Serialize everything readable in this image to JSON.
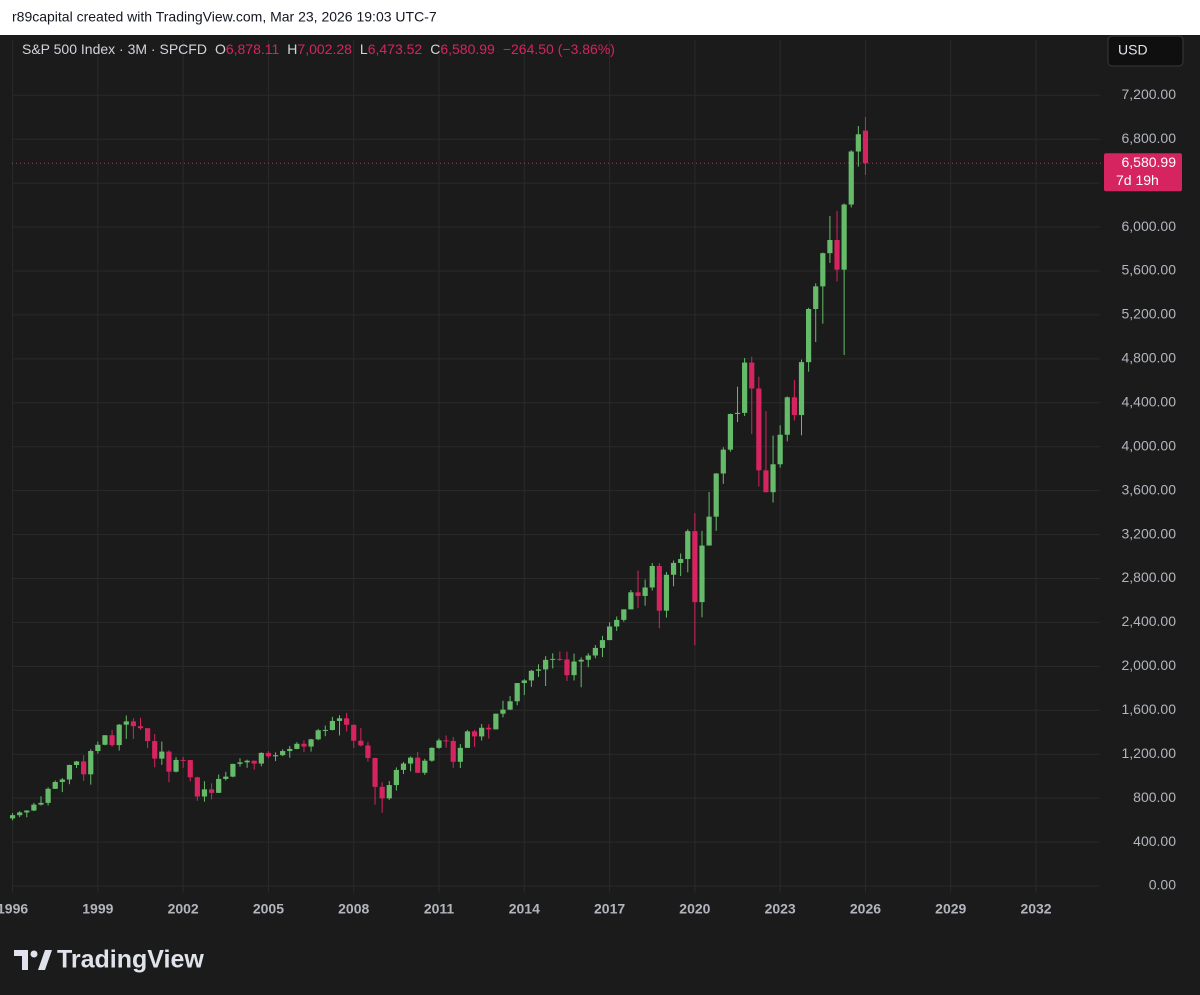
{
  "attribution": "r89capital created with TradingView.com, Mar 23, 2026 19:03 UTC-7",
  "brand": "TradingView",
  "chart_data": {
    "type": "candlestick",
    "title": "S&P 500 Index · 3M · SPCFD",
    "currency": "USD",
    "up_color": "#66bb6a",
    "down_color": "#d5245f",
    "grid": true,
    "ohlc_legend": [
      {
        "key": "O",
        "value": 6878.11,
        "label": "6,878.11"
      },
      {
        "key": "H",
        "value": 7002.28,
        "label": "7,002.28"
      },
      {
        "key": "L",
        "value": 6473.52,
        "label": "6,473.52"
      },
      {
        "key": "C",
        "value": 6580.99,
        "label": "6,580.99"
      }
    ],
    "change": {
      "value": -264.5,
      "label": "−264.50 (−3.86%)"
    },
    "last_price": {
      "value": 6580.99,
      "label": "6,580.99"
    },
    "countdown": "7d 19h",
    "xlim": [
      1995.98,
      2034.25
    ],
    "xticks": [
      {
        "value": 1996,
        "label": "1996"
      },
      1999,
      2002,
      2005,
      2008,
      2011,
      2014,
      2017,
      2020,
      2023,
      2026,
      2029,
      2032
    ],
    "ylim": [
      -60,
      7430
    ],
    "yticks": [
      {
        "value": 0,
        "label": "0.00"
      },
      {
        "value": 400,
        "label": "400.00"
      },
      {
        "value": 800,
        "label": "800.00"
      },
      {
        "value": 1200,
        "label": "1,200.00"
      },
      {
        "value": 1600,
        "label": "1,600.00"
      },
      {
        "value": 2000,
        "label": "2,000.00"
      },
      {
        "value": 2400,
        "label": "2,400.00"
      },
      {
        "value": 2800,
        "label": "2,800.00"
      },
      {
        "value": 3200,
        "label": "3,200.00"
      },
      {
        "value": 3600,
        "label": "3,600.00"
      },
      {
        "value": 4000,
        "label": "4,000.00"
      },
      {
        "value": 4400,
        "label": "4,400.00"
      },
      {
        "value": 4800,
        "label": "4,800.00"
      },
      {
        "value": 5200,
        "label": "5,200.00"
      },
      {
        "value": 5600,
        "label": "5,600.00"
      },
      {
        "value": 6000,
        "label": "6,000.00"
      },
      {
        "value": 6400,
        "label": "6,400.00"
      },
      {
        "value": 6800,
        "label": "6,800.00"
      },
      {
        "value": 7200,
        "label": "7,200.00"
      }
    ],
    "x": [
      1996,
      1996.25,
      1996.5,
      1996.75,
      1997,
      1997.25,
      1997.5,
      1997.75,
      1998,
      1998.25,
      1998.5,
      1998.75,
      1999,
      1999.25,
      1999.5,
      1999.75,
      2000,
      2000.25,
      2000.5,
      2000.75,
      2001,
      2001.25,
      2001.5,
      2001.75,
      2002,
      2002.25,
      2002.5,
      2002.75,
      2003,
      2003.25,
      2003.5,
      2003.75,
      2004,
      2004.25,
      2004.5,
      2004.75,
      2005,
      2005.25,
      2005.5,
      2005.75,
      2006,
      2006.25,
      2006.5,
      2006.75,
      2007,
      2007.25,
      2007.5,
      2007.75,
      2008,
      2008.25,
      2008.5,
      2008.75,
      2009,
      2009.25,
      2009.5,
      2009.75,
      2010,
      2010.25,
      2010.5,
      2010.75,
      2011,
      2011.25,
      2011.5,
      2011.75,
      2012,
      2012.25,
      2012.5,
      2012.75,
      2013,
      2013.25,
      2013.5,
      2013.75,
      2014,
      2014.25,
      2014.5,
      2014.75,
      2015,
      2015.25,
      2015.5,
      2015.75,
      2016,
      2016.25,
      2016.5,
      2016.75,
      2017,
      2017.25,
      2017.5,
      2017.75,
      2018,
      2018.25,
      2018.5,
      2018.75,
      2019,
      2019.25,
      2019.5,
      2019.75,
      2020,
      2020.25,
      2020.5,
      2020.75,
      2021,
      2021.25,
      2021.5,
      2021.75,
      2022,
      2022.25,
      2022.5,
      2022.75,
      2023,
      2023.25,
      2023.5,
      2023.75,
      2024,
      2024.25,
      2024.5,
      2024.75,
      2025,
      2025.25,
      2025.5,
      2025.75,
      2026
    ],
    "open": [
      616,
      645,
      670,
      687,
      741,
      757,
      885,
      947,
      970,
      1102,
      1134,
      1017,
      1229,
      1286,
      1373,
      1283,
      1469,
      1499,
      1455,
      1437,
      1320,
      1160,
      1224,
      1041,
      1148,
      1147,
      990,
      815,
      880,
      848,
      975,
      996,
      1112,
      1126,
      1141,
      1115,
      1212,
      1181,
      1191,
      1229,
      1248,
      1295,
      1270,
      1336,
      1418,
      1421,
      1503,
      1527,
      1468,
      1323,
      1280,
      1166,
      903,
      798,
      919,
      1057,
      1115,
      1169,
      1031,
      1141,
      1258,
      1326,
      1321,
      1131,
      1258,
      1408,
      1362,
      1441,
      1426,
      1569,
      1606,
      1682,
      1848,
      1872,
      1960,
      1972,
      2059,
      2068,
      2063,
      1920,
      2044,
      2060,
      2099,
      2168,
      2239,
      2363,
      2423,
      2519,
      2674,
      2641,
      2718,
      2914,
      2507,
      2834,
      2942,
      2977,
      3231,
      2585,
      3100,
      3363,
      3756,
      3973,
      4298,
      4308,
      4766,
      4530,
      3785,
      3586,
      3840,
      4109,
      4450,
      4288,
      4770,
      5254,
      5460,
      5762,
      5882,
      5612,
      6205,
      6688,
      6878.11
    ],
    "high": [
      664,
      681,
      690,
      757,
      817,
      898,
      961,
      983,
      1105,
      1139,
      1190,
      1245,
      1316,
      1373,
      1420,
      1475,
      1553,
      1527,
      1531,
      1437,
      1384,
      1316,
      1236,
      1173,
      1176,
      1147,
      994,
      954,
      935,
      1015,
      1040,
      1112,
      1163,
      1150,
      1141,
      1217,
      1229,
      1217,
      1245,
      1275,
      1310,
      1326,
      1340,
      1431,
      1461,
      1540,
      1555,
      1576,
      1471,
      1440,
      1313,
      1167,
      944,
      956,
      1080,
      1130,
      1180,
      1220,
      1158,
      1263,
      1344,
      1371,
      1357,
      1293,
      1420,
      1422,
      1475,
      1474,
      1570,
      1687,
      1729,
      1849,
      1883,
      1968,
      2019,
      2093,
      2119,
      2135,
      2133,
      2116,
      2082,
      2120,
      2194,
      2278,
      2401,
      2454,
      2519,
      2695,
      2873,
      2791,
      2941,
      2940,
      2860,
      2964,
      3028,
      3248,
      3394,
      3233,
      3588,
      3760,
      3995,
      4302,
      4546,
      4808,
      4819,
      4637,
      4325,
      4101,
      4195,
      4458,
      4607,
      4793,
      5265,
      5488,
      5768,
      6100,
      6147,
      6215,
      6700,
      6920,
      7002.28
    ],
    "low": [
      598,
      627,
      626,
      682,
      733,
      733,
      884,
      855,
      927,
      1074,
      957,
      923,
      1205,
      1281,
      1268,
      1233,
      1339,
      1339,
      1422,
      1255,
      1081,
      1103,
      945,
      1034,
      1074,
      952,
      776,
      768,
      789,
      847,
      960,
      990,
      1087,
      1076,
      1060,
      1090,
      1163,
      1137,
      1183,
      1168,
      1245,
      1219,
      1224,
      1327,
      1364,
      1416,
      1371,
      1407,
      1257,
      1272,
      1133,
      741,
      667,
      784,
      869,
      1020,
      1044,
      1028,
      1011,
      1131,
      1249,
      1259,
      1075,
      1074,
      1258,
      1267,
      1325,
      1343,
      1426,
      1536,
      1604,
      1646,
      1738,
      1814,
      1904,
      1821,
      1981,
      2048,
      1867,
      1872,
      1810,
      1992,
      2074,
      2084,
      2245,
      2323,
      2406,
      2520,
      2533,
      2553,
      2691,
      2347,
      2444,
      2729,
      2822,
      2856,
      2192,
      2447,
      3115,
      3234,
      3662,
      3954,
      4224,
      4279,
      4115,
      3637,
      3584,
      3492,
      3809,
      4049,
      4239,
      4104,
      4683,
      4953,
      5120,
      5674,
      5505,
      4835,
      6178,
      6550,
      6473.52
    ],
    "close": [
      645,
      670,
      687,
      741,
      757,
      885,
      947,
      970,
      1102,
      1134,
      1017,
      1229,
      1286,
      1373,
      1283,
      1469,
      1499,
      1455,
      1437,
      1320,
      1160,
      1224,
      1041,
      1148,
      1147,
      990,
      815,
      880,
      848,
      975,
      996,
      1112,
      1126,
      1141,
      1115,
      1212,
      1181,
      1191,
      1229,
      1248,
      1295,
      1270,
      1336,
      1418,
      1421,
      1503,
      1527,
      1468,
      1323,
      1280,
      1166,
      903,
      798,
      919,
      1057,
      1115,
      1169,
      1031,
      1141,
      1258,
      1326,
      1321,
      1131,
      1258,
      1408,
      1362,
      1441,
      1426,
      1569,
      1606,
      1682,
      1848,
      1872,
      1960,
      1972,
      2059,
      2068,
      2063,
      1920,
      2044,
      2060,
      2099,
      2168,
      2239,
      2363,
      2423,
      2519,
      2674,
      2641,
      2718,
      2914,
      2507,
      2834,
      2942,
      2977,
      3231,
      2585,
      3100,
      3363,
      3756,
      3973,
      4298,
      4308,
      4766,
      4530,
      3785,
      3586,
      3840,
      4109,
      4450,
      4288,
      4770,
      5254,
      5460,
      5762,
      5882,
      5612,
      6205,
      6688,
      6845,
      6580.99
    ]
  }
}
